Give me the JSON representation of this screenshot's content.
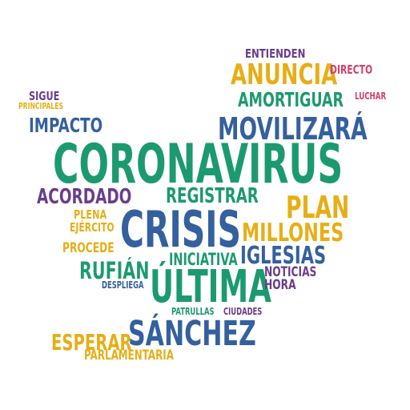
{
  "colors": {
    "purple": "#6a3d8a",
    "blue": "#34609e",
    "green": "#1c9a6f",
    "gold": "#e6ae17",
    "pink": "#d5406b",
    "background": "#ffffff"
  },
  "words": {
    "entienden": "ENTIENDEN",
    "anuncia": "ANUNCIA",
    "directo": "DIRECTO",
    "sigue": "SIGUE",
    "principales": "PRINCIPALES",
    "amortiguar": "AMORTIGUAR",
    "luchar": "LUCHAR",
    "impacto": "IMPACTO",
    "movilizara": "MOVILIZARÁ",
    "coronavirus": "CORONAVIRUS",
    "acordado": "ACORDADO",
    "registrar": "REGISTRAR",
    "plan": "PLAN",
    "plena": "PLENA",
    "ejercito": "EJÉRCITO",
    "crisis": "CRISIS",
    "millones": "MILLONES",
    "procede": "PROCEDE",
    "iniciativa": "INICIATIVA",
    "iglesias": "IGLESIAS",
    "rufian": "RUFIÁN",
    "noticias": "NOTICIAS",
    "despliega": "DESPLIEGA",
    "ultima": "ÚLTIMA",
    "hora": "HORA",
    "patrullas": "PATRULLAS",
    "ciudades": "CIUDADES",
    "sanchez": "SÁNCHEZ",
    "esperar": "ESPERAR",
    "parlamentaria": "PARLAMENTARIA"
  }
}
